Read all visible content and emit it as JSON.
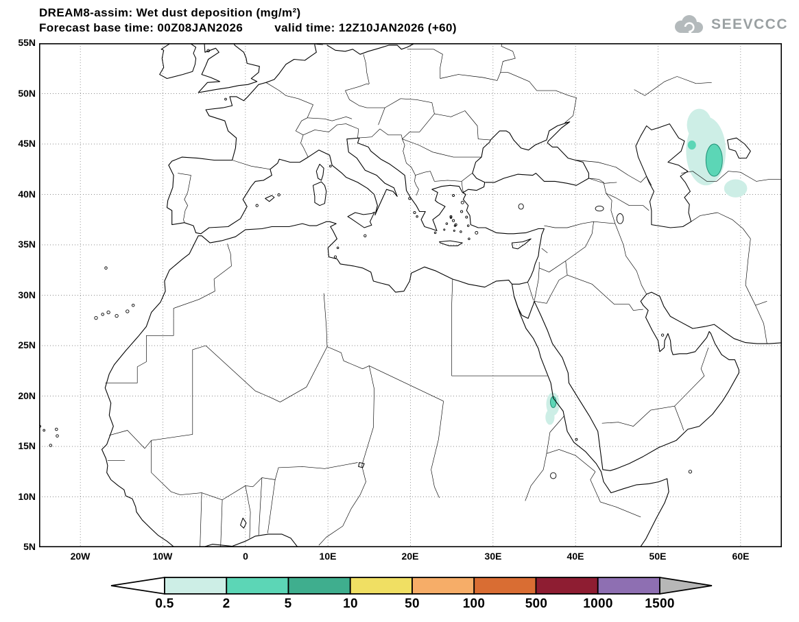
{
  "header": {
    "line1": "DREAM8-assim: Wet dust deposition (mg/m²)",
    "line2_left": "Forecast base time: 00Z08JAN2026",
    "line2_right": "valid time: 12Z10JAN2026 (+60)",
    "logo": "SEEVCCC"
  },
  "chart_data": {
    "type": "heatmap",
    "title": "DREAM8-assim: Wet dust deposition (mg/m²)",
    "model": "DREAM8-assim",
    "variable": "Wet dust deposition",
    "units": "mg/m²",
    "forecast_base_time": "00Z08JAN2026",
    "valid_time": "12Z10JAN2026",
    "forecast_hour": "+60",
    "projection": {
      "lon_min": -25,
      "lon_max": 65,
      "lat_min": 5,
      "lat_max": 55
    },
    "x_ticks": [
      "20W",
      "10W",
      "0",
      "10E",
      "20E",
      "30E",
      "40E",
      "50E",
      "60E"
    ],
    "y_ticks": [
      "55N",
      "50N",
      "45N",
      "40N",
      "35N",
      "30N",
      "25N",
      "20N",
      "15N",
      "10N",
      "5N"
    ],
    "grid": "dotted, every 10 deg lon / 5 deg lat",
    "colorbar": {
      "units": "mg/m²",
      "levels": [
        "0.5",
        "2",
        "5",
        "10",
        "50",
        "100",
        "500",
        "1000",
        "1500"
      ],
      "colors": [
        "#ffffff",
        "#cdeee6",
        "#5cd6b6",
        "#3fae8e",
        "#f0df63",
        "#f6ad68",
        "#d96d33",
        "#8e1d32",
        "#8e6fb2",
        "#b7b7b7"
      ]
    },
    "deposition_features": [
      {
        "area": "east/northeast of Caspian Sea (Turkmenistan/Kazakhstan)",
        "lon": 56,
        "lat": 44,
        "max_bin": "2-5 mg/m²"
      },
      {
        "area": "south of Kara-Bogaz, Turkmenistan",
        "lon": 59.4,
        "lat": 40.6,
        "max_bin": "0.5-2 mg/m²"
      },
      {
        "area": "Red Sea coast, Sudan/Eritrea",
        "lon": 37.2,
        "lat": 19.2,
        "max_bin": "2-5 mg/m²"
      }
    ],
    "patches": [
      {
        "bin": "0.5-2",
        "color": "#cdeee6",
        "lon": 55.8,
        "lat": 44.3,
        "rx_deg": 2.4,
        "ry_deg": 3.4
      },
      {
        "bin": "0.5-2",
        "color": "#cdeee6",
        "lon": 55.0,
        "lat": 46.9,
        "rx_deg": 1.5,
        "ry_deg": 1.6
      },
      {
        "bin": "0.5-2",
        "color": "#cdeee6",
        "lon": 59.4,
        "lat": 40.6,
        "rx_deg": 1.4,
        "ry_deg": 0.9
      },
      {
        "bin": "2-5",
        "color": "#5cd6b6",
        "stroke": "#1f8e74",
        "lon": 56.8,
        "lat": 43.4,
        "rx_deg": 1.0,
        "ry_deg": 1.6
      },
      {
        "bin": "2-5",
        "color": "#5cd6b6",
        "lon": 54.1,
        "lat": 44.9,
        "rx_deg": 0.5,
        "ry_deg": 0.45
      },
      {
        "bin": "0.5-2",
        "color": "#cdeee6",
        "lon": 37.25,
        "lat": 19.2,
        "rx_deg": 0.8,
        "ry_deg": 1.15
      },
      {
        "bin": "0.5-2",
        "color": "#cdeee6",
        "lon": 36.9,
        "lat": 17.9,
        "rx_deg": 0.55,
        "ry_deg": 0.75
      },
      {
        "bin": "2-5",
        "color": "#5cd6b6",
        "stroke": "#1f8e74",
        "lon": 37.3,
        "lat": 19.4,
        "rx_deg": 0.35,
        "ry_deg": 0.55
      }
    ]
  }
}
